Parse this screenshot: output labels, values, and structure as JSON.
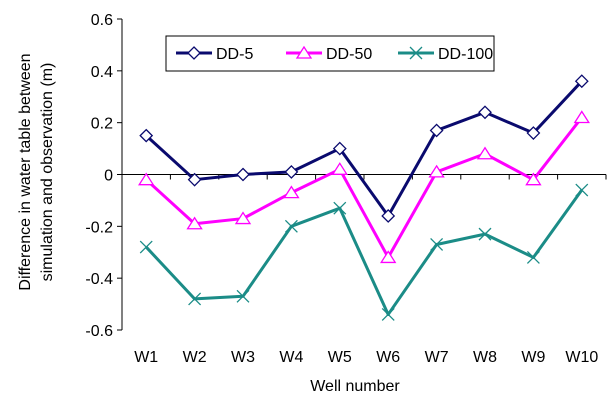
{
  "chart_data": {
    "type": "line",
    "categories": [
      "W1",
      "W2",
      "W3",
      "W4",
      "W5",
      "W6",
      "W7",
      "W8",
      "W9",
      "W10"
    ],
    "ylim": [
      -0.6,
      0.6
    ],
    "yticks": [
      "0.6",
      "0.4",
      "0.2",
      "0",
      "-0.2",
      "-0.4",
      "-0.6"
    ],
    "ytick_values": [
      0.6,
      0.4,
      0.2,
      0,
      -0.2,
      -0.4,
      -0.6
    ],
    "xlabel": "Well number",
    "ylabel_line1": "Difference in water table between",
    "ylabel_line2": "simulation and observation (m)",
    "grid": false,
    "legend_position": "top-left",
    "series": [
      {
        "name": "DD-5",
        "color": "#0a0a6e",
        "marker": "diamond",
        "values": [
          0.15,
          -0.02,
          0.0,
          0.01,
          0.1,
          -0.16,
          0.17,
          0.24,
          0.16,
          0.36
        ]
      },
      {
        "name": "DD-50",
        "color": "#ff00ff",
        "marker": "triangle",
        "values": [
          -0.02,
          -0.19,
          -0.17,
          -0.07,
          0.02,
          -0.32,
          0.01,
          0.08,
          -0.02,
          0.22
        ]
      },
      {
        "name": "DD-100",
        "color": "#1b8c87",
        "marker": "x",
        "values": [
          -0.28,
          -0.48,
          -0.47,
          -0.2,
          -0.13,
          -0.54,
          -0.27,
          -0.23,
          -0.32,
          -0.06
        ]
      }
    ]
  }
}
